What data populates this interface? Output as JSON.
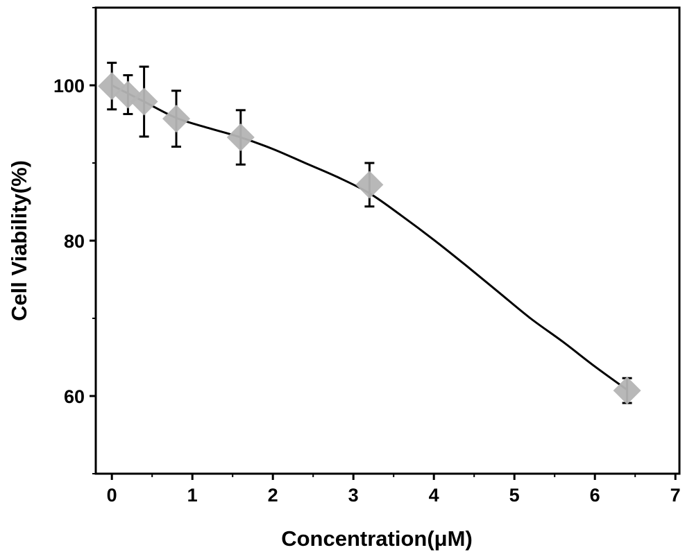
{
  "chart_data": {
    "type": "line",
    "title": "",
    "xlabel": "Concentration(μM)",
    "ylabel": "Cell Viability(%)",
    "xlim": [
      -0.2,
      7.05
    ],
    "ylim": [
      50,
      110
    ],
    "x_ticks": [
      0,
      1,
      2,
      3,
      4,
      5,
      6,
      7
    ],
    "x_tick_labels": [
      "0",
      "1",
      "2",
      "3",
      "4",
      "5",
      "6",
      "7"
    ],
    "y_ticks": [
      60,
      80,
      100
    ],
    "y_tick_labels": [
      "60",
      "80",
      "100"
    ],
    "grid": false,
    "legend": "none",
    "series": [
      {
        "marker": "diamond",
        "x": [
          0,
          0.2,
          0.4,
          0.8,
          1.6,
          3.2,
          6.4
        ],
        "y": [
          99.9,
          98.8,
          97.9,
          95.7,
          93.3,
          87.2,
          60.7
        ],
        "error": [
          3.0,
          2.5,
          4.5,
          3.6,
          3.5,
          2.8,
          1.6
        ]
      }
    ],
    "fit_curve": {
      "x": [
        0,
        0.4,
        0.8,
        1.2,
        1.6,
        2.0,
        2.4,
        2.8,
        3.2,
        3.6,
        4.0,
        4.4,
        4.8,
        5.2,
        5.6,
        6.0,
        6.4
      ],
      "y": [
        100.0,
        97.9,
        95.8,
        94.5,
        93.3,
        91.8,
        90.0,
        88.2,
        86.1,
        83.2,
        80.1,
        76.8,
        73.4,
        70.0,
        67.0,
        63.8,
        60.8
      ]
    },
    "colors": {
      "marker": "#b4b4b4",
      "line": "#000000",
      "error_bar": "#000000",
      "axis": "#000000",
      "background": "#ffffff"
    }
  }
}
